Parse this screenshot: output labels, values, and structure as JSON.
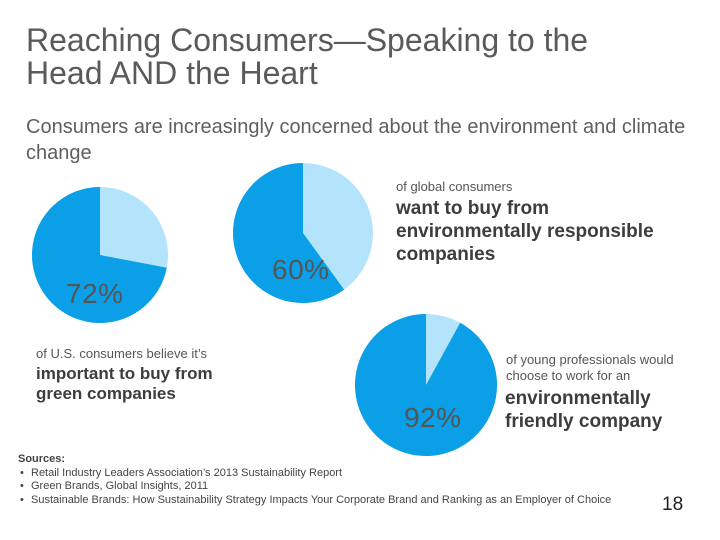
{
  "slide": {
    "title": "Reaching Consumers—Speaking to the Head AND the Heart",
    "subtitle": "Consumers are increasingly concerned about the environment and climate change",
    "page_number": "18"
  },
  "colors": {
    "primary": "#0a9fe6",
    "secondary": "#b3e4fb"
  },
  "stats": [
    {
      "id": "us-consumers",
      "value": 72,
      "label": "72%",
      "small": "of U.S. consumers believe it’s",
      "bold": "important to buy from green companies"
    },
    {
      "id": "global-consumers",
      "value": 60,
      "label": "60%",
      "small": "of global consumers",
      "bold": "want to buy from environmentally responsible companies"
    },
    {
      "id": "young-professionals",
      "value": 92,
      "label": "92%",
      "small": "of young professionals would choose to work for an",
      "bold": "environmentally friendly company"
    }
  ],
  "sources": {
    "heading": "Sources:",
    "items": [
      "Retail Industry Leaders Association’s 2013 Sustainability Report",
      "Green Brands, Global Insights, 2011",
      "Sustainable Brands: How Sustainability Strategy Impacts Your Corporate Brand and Ranking as an Employer of Choice"
    ]
  }
}
